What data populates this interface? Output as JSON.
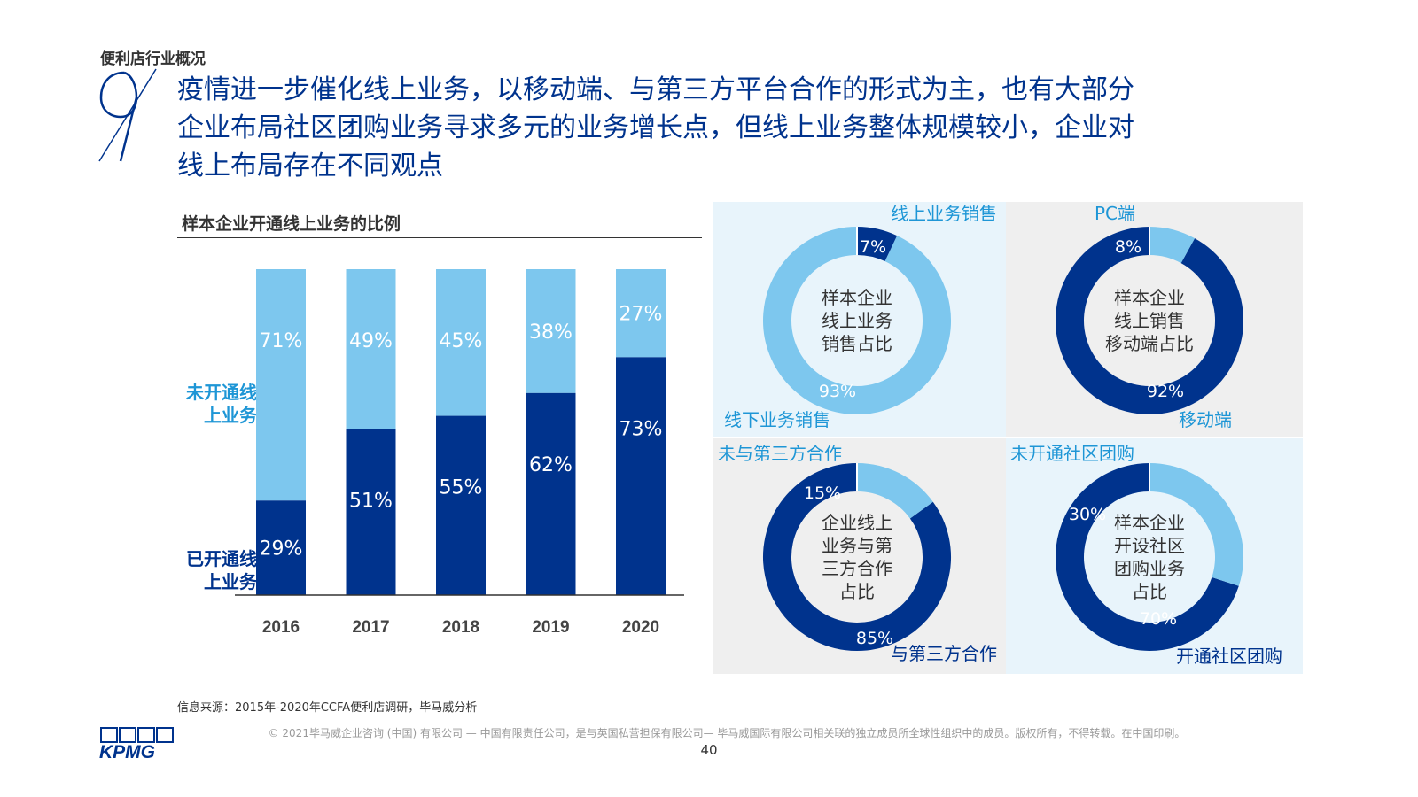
{
  "section_label": "便利店行业概况",
  "headline": {
    "lines": [
      "疫情进一步催化线上业务，以移动端、与第三方平台合作的形式为主，也有大部分",
      "企业布局社区团购业务寻求多元的业务增长点，但线上业务整体规模较小，企业对",
      "线上布局存在不同观点"
    ]
  },
  "colors": {
    "dark": "#00338D",
    "light": "#7DC7EE",
    "panel_blue": "#E8F4FB",
    "panel_grey": "#EFEFEF",
    "accent": "#1E96D6"
  },
  "legend": {
    "unopened": [
      "未开通线",
      "上业务"
    ],
    "opened": [
      "已开通线",
      "上业务"
    ]
  },
  "chart_data": [
    {
      "type": "bar",
      "title": "样本企业开通线上业务的比例",
      "categories": [
        "2016",
        "2017",
        "2018",
        "2019",
        "2020"
      ],
      "series": [
        {
          "name": "已开通线上业务",
          "values": [
            29,
            51,
            55,
            62,
            73
          ]
        },
        {
          "name": "未开通线上业务",
          "values": [
            71,
            49,
            45,
            38,
            27
          ]
        }
      ],
      "ylim": [
        0,
        100
      ],
      "grid": false,
      "stacked": true
    },
    {
      "type": "pie",
      "center_label": [
        "样本企业",
        "线上业务",
        "销售占比"
      ],
      "slices": [
        {
          "name": "线上业务销售",
          "value": 7,
          "label": "7%"
        },
        {
          "name": "线下业务销售",
          "value": 93,
          "label": "93%"
        }
      ]
    },
    {
      "type": "pie",
      "center_label": [
        "样本企业",
        "线上销售",
        "移动端占比"
      ],
      "slices": [
        {
          "name": "PC端",
          "value": 8,
          "label": "8%"
        },
        {
          "name": "移动端",
          "value": 92,
          "label": "92%"
        }
      ]
    },
    {
      "type": "pie",
      "center_label": [
        "企业线上",
        "业务与第",
        "三方合作",
        "占比"
      ],
      "slices": [
        {
          "name": "未与第三方合作",
          "value": 15,
          "label": "15%"
        },
        {
          "name": "与第三方合作",
          "value": 85,
          "label": "85%"
        }
      ]
    },
    {
      "type": "pie",
      "center_label": [
        "样本企业",
        "开设社区",
        "团购业务",
        "占比"
      ],
      "slices": [
        {
          "name": "未开通社区团购",
          "value": 30,
          "label": "30%"
        },
        {
          "name": "开通社区团购",
          "value": 70,
          "label": "70%"
        }
      ]
    }
  ],
  "source": "信息来源：2015年-2020年CCFA便利店调研，毕马威分析",
  "copyright": "© 2021毕马威企业咨询 (中国) 有限公司 — 中国有限责任公司，是与英国私营担保有限公司— 毕马威国际有限公司相关联的独立成员所全球性组织中的成员。版权所有，不得转载。在中国印刷。",
  "page_number": "40",
  "logo_text": "KPMG"
}
